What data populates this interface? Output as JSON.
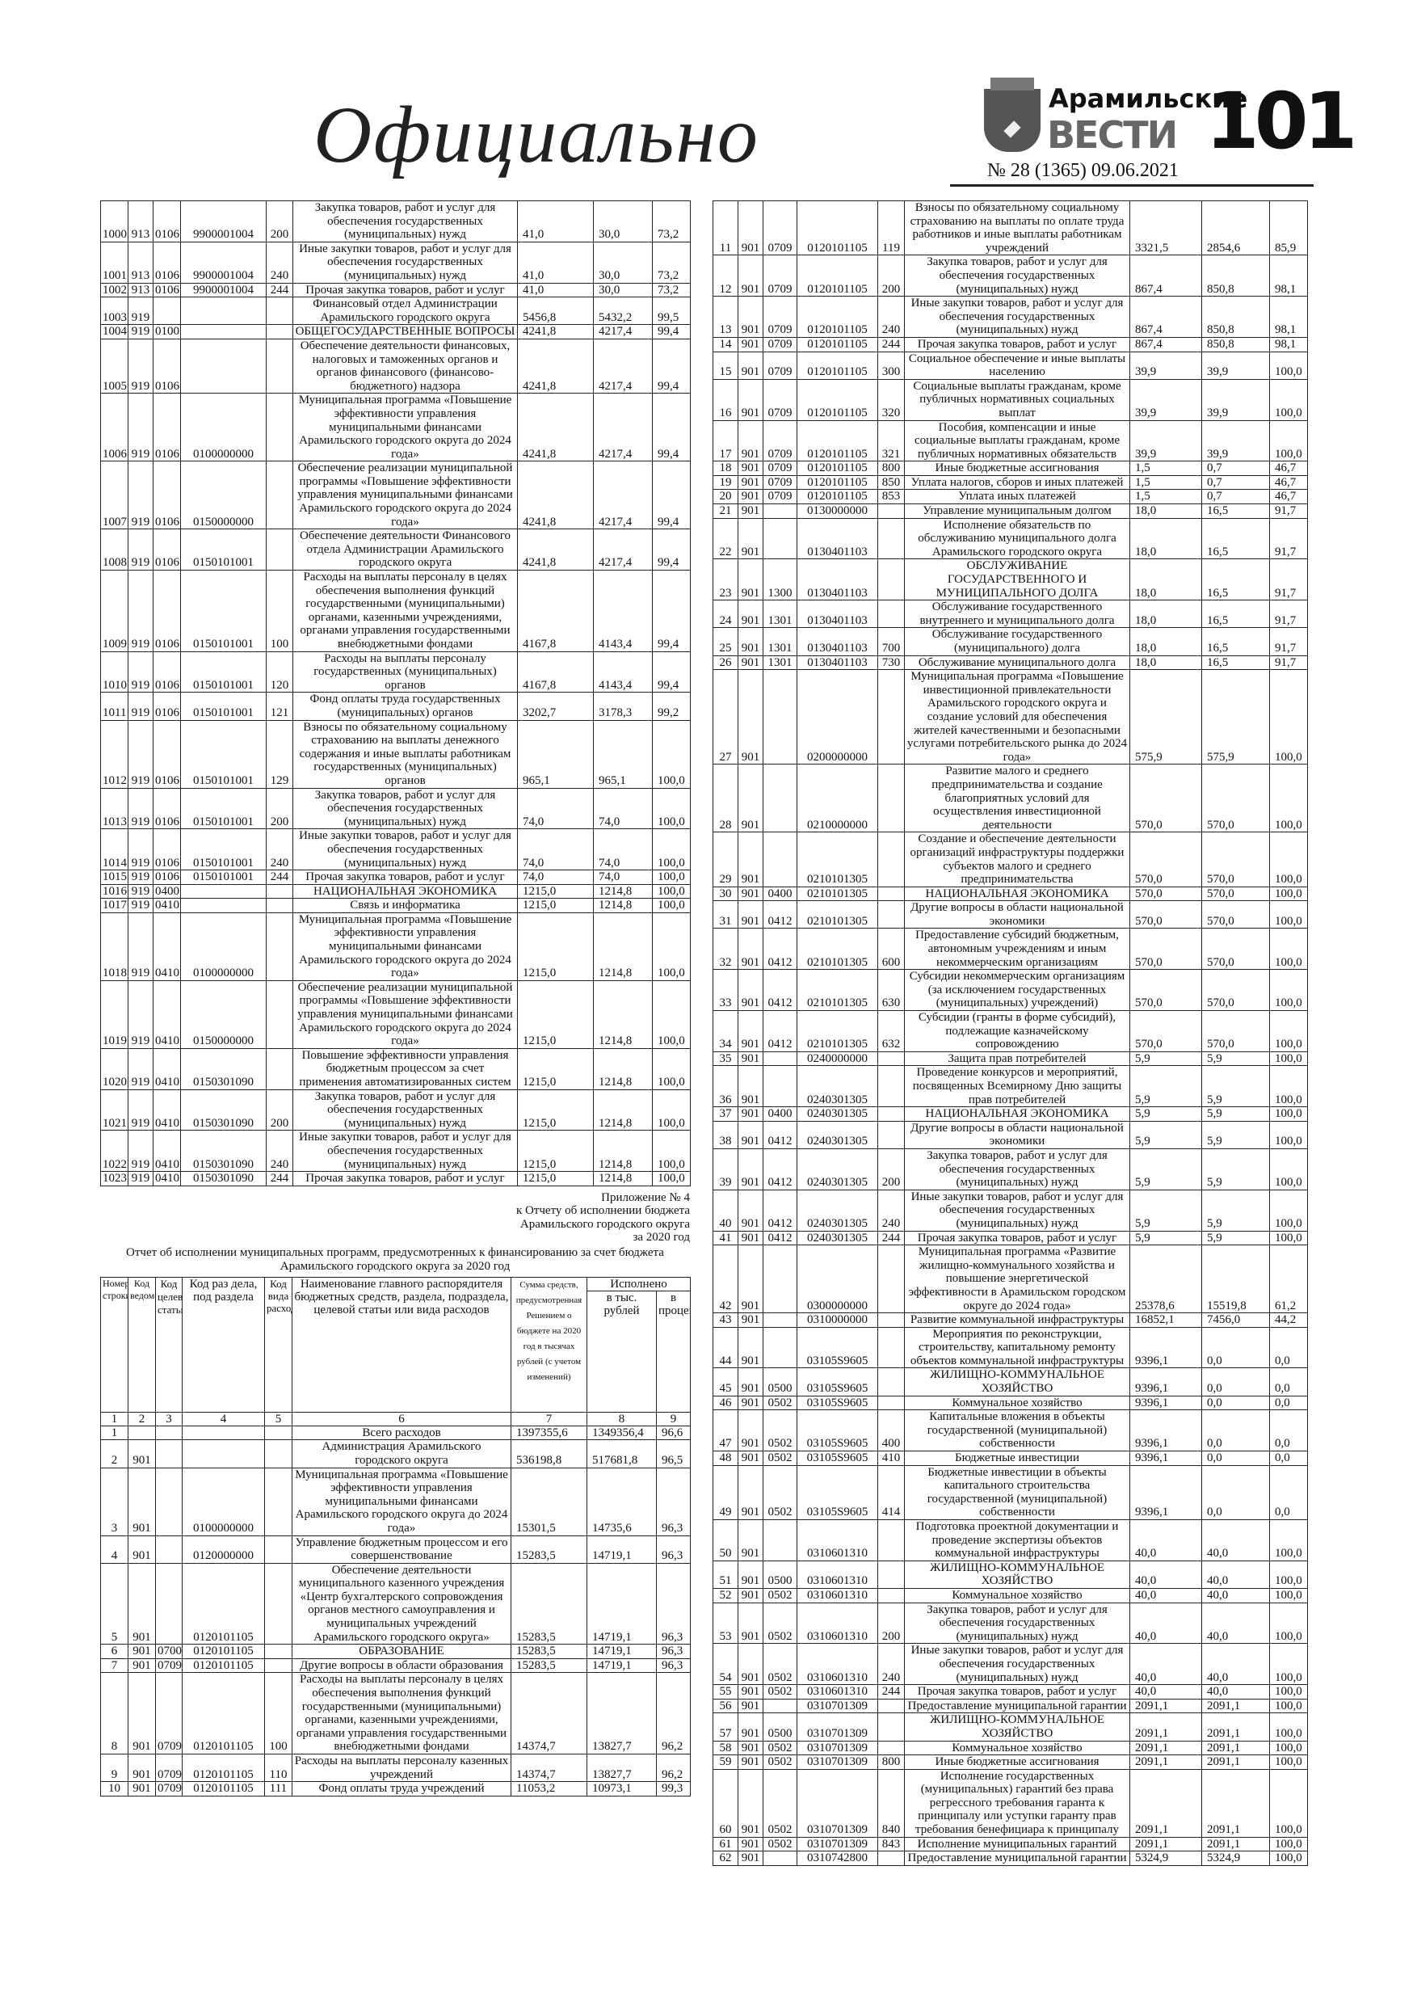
{
  "header": {
    "section_title": "Официально",
    "brand_top": "Арамильские",
    "brand_main": "ВЕСТИ",
    "page_number": "101",
    "issue": "№ 28 (1365) 09.06.2021"
  },
  "appendix": {
    "lines": [
      "Приложение № 4",
      "к Отчету об исполнении бюджета",
      "Арамильского городского округа",
      "за 2020 год"
    ]
  },
  "report_title": "Отчет об исполнении муниципальных программ, предусмотренных к финансированию за счет бюджета Арамильского городского округа за 2020 год",
  "table2_header": {
    "c1": "Номер строки",
    "c2": "Код ведомства",
    "c3": "Код целевой статьи",
    "c4": "Код раз дела, под раздела",
    "c5": "Код вида расходов",
    "c6": "Наименование главного распорядителя бюджетных средств, раздела, подраздела, целевой статьи или вида расходов",
    "c7": "Сумма средств, предусмотренная Решением о бюджете на 2020 год в тысячах рублей (с учетом изменений)",
    "c8_group": "Исполнено",
    "c8": "в тыс. рублей",
    "c9": "в процентах",
    "nums": [
      "1",
      "2",
      "3",
      "4",
      "5",
      "6",
      "7",
      "8",
      "9"
    ]
  },
  "table1_rows": [
    [
      "1000",
      "913",
      "0106",
      "9900001004",
      "200",
      "Закупка товаров, работ и услуг для обеспечения государственных (муниципальных) нужд",
      "41,0",
      "30,0",
      "73,2"
    ],
    [
      "1001",
      "913",
      "0106",
      "9900001004",
      "240",
      "Иные закупки товаров, работ и услуг для обеспечения государственных (муниципальных) нужд",
      "41,0",
      "30,0",
      "73,2"
    ],
    [
      "1002",
      "913",
      "0106",
      "9900001004",
      "244",
      "Прочая закупка товаров, работ и услуг",
      "41,0",
      "30,0",
      "73,2"
    ],
    [
      "1003",
      "919",
      "",
      "",
      "",
      "Финансовый отдел Администрации Арамильского городского округа",
      "5456,8",
      "5432,2",
      "99,5"
    ],
    [
      "1004",
      "919",
      "0100",
      "",
      "",
      "ОБЩЕГОСУДАРСТВЕННЫЕ ВОПРОСЫ",
      "4241,8",
      "4217,4",
      "99,4"
    ],
    [
      "1005",
      "919",
      "0106",
      "",
      "",
      "Обеспечение деятельности финансовых, налоговых и таможенных органов и органов финансового (финансово-бюджетного) надзора",
      "4241,8",
      "4217,4",
      "99,4"
    ],
    [
      "1006",
      "919",
      "0106",
      "0100000000",
      "",
      "Муниципальная программа «Повышение эффективности управления муниципальными финансами Арамильского городского округа до 2024 года»",
      "4241,8",
      "4217,4",
      "99,4"
    ],
    [
      "1007",
      "919",
      "0106",
      "0150000000",
      "",
      "Обеспечение реализации муниципальной программы «Повышение эффективности управления муниципальными финансами Арамильского городского округа до 2024 года»",
      "4241,8",
      "4217,4",
      "99,4"
    ],
    [
      "1008",
      "919",
      "0106",
      "0150101001",
      "",
      "Обеспечение деятельности Финансового отдела Администрации Арамильского городского округа",
      "4241,8",
      "4217,4",
      "99,4"
    ],
    [
      "1009",
      "919",
      "0106",
      "0150101001",
      "100",
      "Расходы на выплаты персоналу в целях обеспечения выполнения функций государственными (муниципальными) органами, казенными учреждениями, органами управления государственными внебюджетными фондами",
      "4167,8",
      "4143,4",
      "99,4"
    ],
    [
      "1010",
      "919",
      "0106",
      "0150101001",
      "120",
      "Расходы на выплаты персоналу государственных (муниципальных) органов",
      "4167,8",
      "4143,4",
      "99,4"
    ],
    [
      "1011",
      "919",
      "0106",
      "0150101001",
      "121",
      "Фонд оплаты труда государственных (муниципальных) органов",
      "3202,7",
      "3178,3",
      "99,2"
    ],
    [
      "1012",
      "919",
      "0106",
      "0150101001",
      "129",
      "Взносы по обязательному социальному страхованию на выплаты денежного содержания и иные выплаты работникам государственных (муниципальных) органов",
      "965,1",
      "965,1",
      "100,0"
    ],
    [
      "1013",
      "919",
      "0106",
      "0150101001",
      "200",
      "Закупка товаров, работ и услуг для обеспечения государственных (муниципальных) нужд",
      "74,0",
      "74,0",
      "100,0"
    ],
    [
      "1014",
      "919",
      "0106",
      "0150101001",
      "240",
      "Иные закупки товаров, работ и услуг для обеспечения государственных (муниципальных) нужд",
      "74,0",
      "74,0",
      "100,0"
    ],
    [
      "1015",
      "919",
      "0106",
      "0150101001",
      "244",
      "Прочая закупка товаров, работ и услуг",
      "74,0",
      "74,0",
      "100,0"
    ],
    [
      "1016",
      "919",
      "0400",
      "",
      "",
      "НАЦИОНАЛЬНАЯ ЭКОНОМИКА",
      "1215,0",
      "1214,8",
      "100,0"
    ],
    [
      "1017",
      "919",
      "0410",
      "",
      "",
      "Связь и информатика",
      "1215,0",
      "1214,8",
      "100,0"
    ],
    [
      "1018",
      "919",
      "0410",
      "0100000000",
      "",
      "Муниципальная программа «Повышение эффективности управления муниципальными финансами Арамильского городского округа до 2024 года»",
      "1215,0",
      "1214,8",
      "100,0"
    ],
    [
      "1019",
      "919",
      "0410",
      "0150000000",
      "",
      "Обеспечение реализации муниципальной программы «Повышение эффективности управления муниципальными финансами Арамильского городского округа до 2024 года»",
      "1215,0",
      "1214,8",
      "100,0"
    ],
    [
      "1020",
      "919",
      "0410",
      "0150301090",
      "",
      "Повышение эффективности управления бюджетным процессом за счет применения автоматизированных систем",
      "1215,0",
      "1214,8",
      "100,0"
    ],
    [
      "1021",
      "919",
      "0410",
      "0150301090",
      "200",
      "Закупка товаров, работ и услуг для обеспечения государственных (муниципальных) нужд",
      "1215,0",
      "1214,8",
      "100,0"
    ],
    [
      "1022",
      "919",
      "0410",
      "0150301090",
      "240",
      "Иные закупки товаров, работ и услуг для обеспечения государственных (муниципальных) нужд",
      "1215,0",
      "1214,8",
      "100,0"
    ],
    [
      "1023",
      "919",
      "0410",
      "0150301090",
      "244",
      "Прочая закупка товаров, работ и услуг",
      "1215,0",
      "1214,8",
      "100,0"
    ]
  ],
  "table2_rows": [
    [
      "1",
      "",
      "",
      "",
      "",
      "Всего расходов",
      "1397355,6",
      "1349356,4",
      "96,6"
    ],
    [
      "2",
      "901",
      "",
      "",
      "",
      "Администрация Арамильского городского округа",
      "536198,8",
      "517681,8",
      "96,5"
    ],
    [
      "3",
      "901",
      "",
      "0100000000",
      "",
      "Муниципальная программа «Повышение эффективности управления муниципальными финансами Арамильского городского округа до 2024 года»",
      "15301,5",
      "14735,6",
      "96,3"
    ],
    [
      "4",
      "901",
      "",
      "0120000000",
      "",
      "Управление бюджетным процессом и его совершенствование",
      "15283,5",
      "14719,1",
      "96,3"
    ],
    [
      "5",
      "901",
      "",
      "0120101105",
      "",
      "Обеспечение деятельности муниципального казенного учреждения «Центр бухгалтерского сопровождения органов местного самоуправления и муниципальных учреждений Арамильского городского округа»",
      "15283,5",
      "14719,1",
      "96,3"
    ],
    [
      "6",
      "901",
      "0700",
      "0120101105",
      "",
      "ОБРАЗОВАНИЕ",
      "15283,5",
      "14719,1",
      "96,3"
    ],
    [
      "7",
      "901",
      "0709",
      "0120101105",
      "",
      "Другие вопросы в области образования",
      "15283,5",
      "14719,1",
      "96,3"
    ],
    [
      "8",
      "901",
      "0709",
      "0120101105",
      "100",
      "Расходы на выплаты персоналу в целях обеспечения выполнения функций государственными (муниципальными) органами, казенными учреждениями, органами управления государственными внебюджетными фондами",
      "14374,7",
      "13827,7",
      "96,2"
    ],
    [
      "9",
      "901",
      "0709",
      "0120101105",
      "110",
      "Расходы на выплаты персоналу казенных учреждений",
      "14374,7",
      "13827,7",
      "96,2"
    ],
    [
      "10",
      "901",
      "0709",
      "0120101105",
      "111",
      "Фонд оплаты труда учреждений",
      "11053,2",
      "10973,1",
      "99,3"
    ]
  ],
  "table3_rows": [
    [
      "11",
      "901",
      "0709",
      "0120101105",
      "119",
      "Взносы по обязательному социальному страхованию на выплаты по оплате труда работников и иные выплаты работникам учреждений",
      "3321,5",
      "2854,6",
      "85,9"
    ],
    [
      "12",
      "901",
      "0709",
      "0120101105",
      "200",
      "Закупка товаров, работ и услуг для обеспечения государственных (муниципальных) нужд",
      "867,4",
      "850,8",
      "98,1"
    ],
    [
      "13",
      "901",
      "0709",
      "0120101105",
      "240",
      "Иные закупки товаров, работ и услуг для обеспечения государственных (муниципальных) нужд",
      "867,4",
      "850,8",
      "98,1"
    ],
    [
      "14",
      "901",
      "0709",
      "0120101105",
      "244",
      "Прочая закупка товаров, работ и услуг",
      "867,4",
      "850,8",
      "98,1"
    ],
    [
      "15",
      "901",
      "0709",
      "0120101105",
      "300",
      "Социальное обеспечение и иные выплаты населению",
      "39,9",
      "39,9",
      "100,0"
    ],
    [
      "16",
      "901",
      "0709",
      "0120101105",
      "320",
      "Социальные выплаты гражданам, кроме публичных нормативных социальных выплат",
      "39,9",
      "39,9",
      "100,0"
    ],
    [
      "17",
      "901",
      "0709",
      "0120101105",
      "321",
      "Пособия, компенсации и иные социальные выплаты гражданам, кроме публичных нормативных обязательств",
      "39,9",
      "39,9",
      "100,0"
    ],
    [
      "18",
      "901",
      "0709",
      "0120101105",
      "800",
      "Иные бюджетные ассигнования",
      "1,5",
      "0,7",
      "46,7"
    ],
    [
      "19",
      "901",
      "0709",
      "0120101105",
      "850",
      "Уплата налогов, сборов и иных платежей",
      "1,5",
      "0,7",
      "46,7"
    ],
    [
      "20",
      "901",
      "0709",
      "0120101105",
      "853",
      "Уплата иных платежей",
      "1,5",
      "0,7",
      "46,7"
    ],
    [
      "21",
      "901",
      "",
      "0130000000",
      "",
      "Управление муниципальным долгом",
      "18,0",
      "16,5",
      "91,7"
    ],
    [
      "22",
      "901",
      "",
      "0130401103",
      "",
      "Исполнение обязательств по обслуживанию муниципального долга Арамильского городского округа",
      "18,0",
      "16,5",
      "91,7"
    ],
    [
      "23",
      "901",
      "1300",
      "0130401103",
      "",
      "ОБСЛУЖИВАНИЕ ГОСУДАРСТВЕННОГО И МУНИЦИПАЛЬНОГО ДОЛГА",
      "18,0",
      "16,5",
      "91,7"
    ],
    [
      "24",
      "901",
      "1301",
      "0130401103",
      "",
      "Обслуживание государственного внутреннего и муниципального долга",
      "18,0",
      "16,5",
      "91,7"
    ],
    [
      "25",
      "901",
      "1301",
      "0130401103",
      "700",
      "Обслуживание государственного (муниципального) долга",
      "18,0",
      "16,5",
      "91,7"
    ],
    [
      "26",
      "901",
      "1301",
      "0130401103",
      "730",
      "Обслуживание муниципального долга",
      "18,0",
      "16,5",
      "91,7"
    ],
    [
      "27",
      "901",
      "",
      "0200000000",
      "",
      "Муниципальная программа «Повышение инвестиционной привлекательности Арамильского городского округа и создание условий для обеспечения жителей качественными и безопасными услугами потребительского рынка до 2024 года»",
      "575,9",
      "575,9",
      "100,0"
    ],
    [
      "28",
      "901",
      "",
      "0210000000",
      "",
      "Развитие малого и среднего предпринимательства и создание благоприятных условий для осуществления инвестиционной деятельности",
      "570,0",
      "570,0",
      "100,0"
    ],
    [
      "29",
      "901",
      "",
      "0210101305",
      "",
      "Создание и обеспечение деятельности организаций инфраструктуры поддержки субъектов малого и среднего предпринимательства",
      "570,0",
      "570,0",
      "100,0"
    ],
    [
      "30",
      "901",
      "0400",
      "0210101305",
      "",
      "НАЦИОНАЛЬНАЯ ЭКОНОМИКА",
      "570,0",
      "570,0",
      "100,0"
    ],
    [
      "31",
      "901",
      "0412",
      "0210101305",
      "",
      "Другие вопросы в области национальной экономики",
      "570,0",
      "570,0",
      "100,0"
    ],
    [
      "32",
      "901",
      "0412",
      "0210101305",
      "600",
      "Предоставление субсидий бюджетным, автономным учреждениям и иным некоммерческим организациям",
      "570,0",
      "570,0",
      "100,0"
    ],
    [
      "33",
      "901",
      "0412",
      "0210101305",
      "630",
      "Субсидии некоммерческим организациям (за исключением государственных (муниципальных) учреждений)",
      "570,0",
      "570,0",
      "100,0"
    ],
    [
      "34",
      "901",
      "0412",
      "0210101305",
      "632",
      "Субсидии (гранты в форме субсидий), подлежащие казначейскому сопровождению",
      "570,0",
      "570,0",
      "100,0"
    ],
    [
      "35",
      "901",
      "",
      "0240000000",
      "",
      "Защита прав потребителей",
      "5,9",
      "5,9",
      "100,0"
    ],
    [
      "36",
      "901",
      "",
      "0240301305",
      "",
      "Проведение конкурсов и мероприятий, посвященных Всемирному Дню защиты прав потребителей",
      "5,9",
      "5,9",
      "100,0"
    ],
    [
      "37",
      "901",
      "0400",
      "0240301305",
      "",
      "НАЦИОНАЛЬНАЯ ЭКОНОМИКА",
      "5,9",
      "5,9",
      "100,0"
    ],
    [
      "38",
      "901",
      "0412",
      "0240301305",
      "",
      "Другие вопросы в области национальной экономики",
      "5,9",
      "5,9",
      "100,0"
    ],
    [
      "39",
      "901",
      "0412",
      "0240301305",
      "200",
      "Закупка товаров, работ и услуг для обеспечения государственных (муниципальных) нужд",
      "5,9",
      "5,9",
      "100,0"
    ],
    [
      "40",
      "901",
      "0412",
      "0240301305",
      "240",
      "Иные закупки товаров, работ и услуг для обеспечения государственных (муниципальных) нужд",
      "5,9",
      "5,9",
      "100,0"
    ],
    [
      "41",
      "901",
      "0412",
      "0240301305",
      "244",
      "Прочая закупка товаров, работ и услуг",
      "5,9",
      "5,9",
      "100,0"
    ],
    [
      "42",
      "901",
      "",
      "0300000000",
      "",
      "Муниципальная программа «Развитие жилищно-коммунального хозяйства и повышение энергетической эффективности в Арамильском городском округе до 2024 года»",
      "25378,6",
      "15519,8",
      "61,2"
    ],
    [
      "43",
      "901",
      "",
      "0310000000",
      "",
      "Развитие коммунальной инфраструктуры",
      "16852,1",
      "7456,0",
      "44,2"
    ],
    [
      "44",
      "901",
      "",
      "03105S9605",
      "",
      "Мероприятия по реконструкции, строительству, капитальному ремонту объектов коммунальной инфраструктуры",
      "9396,1",
      "0,0",
      "0,0"
    ],
    [
      "45",
      "901",
      "0500",
      "03105S9605",
      "",
      "ЖИЛИЩНО-КОММУНАЛЬНОЕ ХОЗЯЙСТВО",
      "9396,1",
      "0,0",
      "0,0"
    ],
    [
      "46",
      "901",
      "0502",
      "03105S9605",
      "",
      "Коммунальное хозяйство",
      "9396,1",
      "0,0",
      "0,0"
    ],
    [
      "47",
      "901",
      "0502",
      "03105S9605",
      "400",
      "Капитальные вложения в объекты государственной (муниципальной) собственности",
      "9396,1",
      "0,0",
      "0,0"
    ],
    [
      "48",
      "901",
      "0502",
      "03105S9605",
      "410",
      "Бюджетные инвестиции",
      "9396,1",
      "0,0",
      "0,0"
    ],
    [
      "49",
      "901",
      "0502",
      "03105S9605",
      "414",
      "Бюджетные инвестиции в объекты капитального строительства государственной (муниципальной) собственности",
      "9396,1",
      "0,0",
      "0,0"
    ],
    [
      "50",
      "901",
      "",
      "0310601310",
      "",
      "Подготовка проектной документации и проведение экспертизы объектов коммунальной инфраструктуры",
      "40,0",
      "40,0",
      "100,0"
    ],
    [
      "51",
      "901",
      "0500",
      "0310601310",
      "",
      "ЖИЛИЩНО-КОММУНАЛЬНОЕ ХОЗЯЙСТВО",
      "40,0",
      "40,0",
      "100,0"
    ],
    [
      "52",
      "901",
      "0502",
      "0310601310",
      "",
      "Коммунальное хозяйство",
      "40,0",
      "40,0",
      "100,0"
    ],
    [
      "53",
      "901",
      "0502",
      "0310601310",
      "200",
      "Закупка товаров, работ и услуг для обеспечения государственных (муниципальных) нужд",
      "40,0",
      "40,0",
      "100,0"
    ],
    [
      "54",
      "901",
      "0502",
      "0310601310",
      "240",
      "Иные закупки товаров, работ и услуг для обеспечения государственных (муниципальных) нужд",
      "40,0",
      "40,0",
      "100,0"
    ],
    [
      "55",
      "901",
      "0502",
      "0310601310",
      "244",
      "Прочая закупка товаров, работ и услуг",
      "40,0",
      "40,0",
      "100,0"
    ],
    [
      "56",
      "901",
      "",
      "0310701309",
      "",
      "Предоставление муниципальной гарантии",
      "2091,1",
      "2091,1",
      "100,0"
    ],
    [
      "57",
      "901",
      "0500",
      "0310701309",
      "",
      "ЖИЛИЩНО-КОММУНАЛЬНОЕ ХОЗЯЙСТВО",
      "2091,1",
      "2091,1",
      "100,0"
    ],
    [
      "58",
      "901",
      "0502",
      "0310701309",
      "",
      "Коммунальное хозяйство",
      "2091,1",
      "2091,1",
      "100,0"
    ],
    [
      "59",
      "901",
      "0502",
      "0310701309",
      "800",
      "Иные бюджетные ассигнования",
      "2091,1",
      "2091,1",
      "100,0"
    ],
    [
      "60",
      "901",
      "0502",
      "0310701309",
      "840",
      "Исполнение государственных (муниципальных) гарантий без права регрессного требования гаранта к принципалу или уступки гаранту прав требования бенефициара к принципалу",
      "2091,1",
      "2091,1",
      "100,0"
    ],
    [
      "61",
      "901",
      "0502",
      "0310701309",
      "843",
      "Исполнение муниципальных гарантий",
      "2091,1",
      "2091,1",
      "100,0"
    ],
    [
      "62",
      "901",
      "",
      "0310742800",
      "",
      "Предоставление муниципальной гарантии",
      "5324,9",
      "5324,9",
      "100,0"
    ]
  ]
}
